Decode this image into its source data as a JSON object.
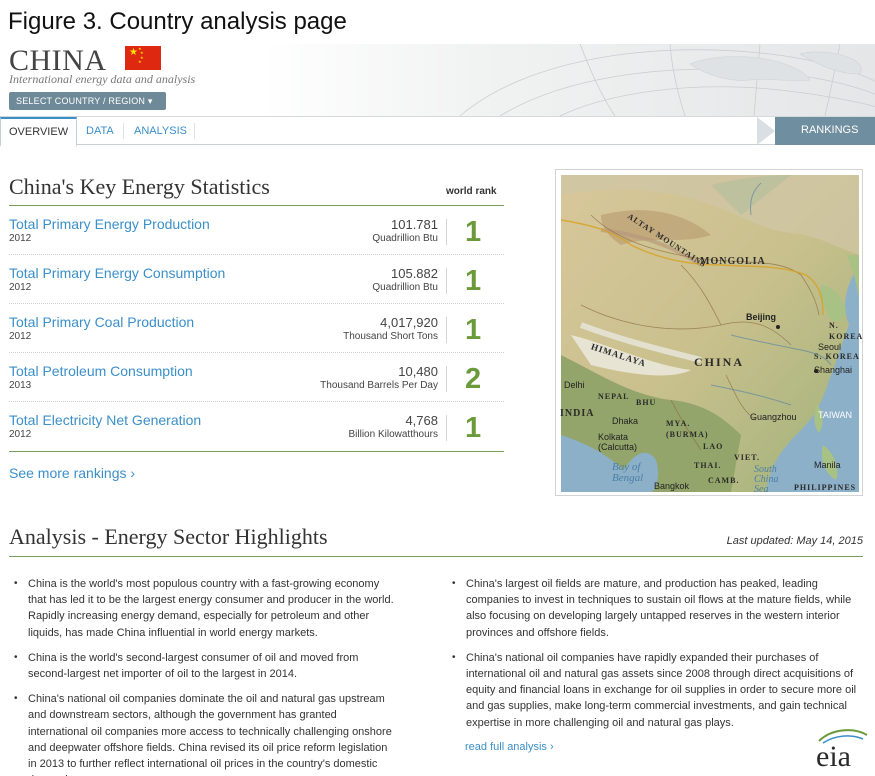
{
  "figure_caption": "Figure 3. Country analysis page",
  "header": {
    "country": "CHINA",
    "subtitle": "International energy data and analysis",
    "select_button": "SELECT COUNTRY / REGION ▾"
  },
  "tabs": [
    {
      "label": "OVERVIEW",
      "active": true
    },
    {
      "label": "DATA",
      "active": false
    },
    {
      "label": "ANALYSIS",
      "active": false
    }
  ],
  "rankings_label": "RANKINGS",
  "stats": {
    "title": "China's Key Energy Statistics",
    "rank_header": "world rank",
    "rows": [
      {
        "label": "Total Primary Energy Production",
        "year": "2012",
        "value": "101.781",
        "unit": "Quadrillion Btu",
        "rank": "1"
      },
      {
        "label": "Total Primary Energy Consumption",
        "year": "2012",
        "value": "105.882",
        "unit": "Quadrillion Btu",
        "rank": "1"
      },
      {
        "label": "Total Primary Coal Production",
        "year": "2012",
        "value": "4,017,920",
        "unit": "Thousand Short Tons",
        "rank": "1"
      },
      {
        "label": "Total Petroleum Consumption",
        "year": "2013",
        "value": "10,480",
        "unit": "Thousand Barrels Per Day",
        "rank": "2"
      },
      {
        "label": "Total Electricity Net Generation",
        "year": "2012",
        "value": "4,768",
        "unit": "Billion Kilowatthours",
        "rank": "1"
      }
    ],
    "see_more": "See more rankings ›"
  },
  "map_labels": {
    "mongolia": "MONGOLIA",
    "altay": "ALTAY MOUNTAINS",
    "china": "CHINA",
    "himalaya": "HIMALAYA",
    "beijing": "Beijing",
    "shanghai": "Shanghai",
    "seoul": "Seoul",
    "s_korea": "S. KOREA",
    "n_korea": "N. KOREA",
    "delhi": "Delhi",
    "nepal": "NEPAL",
    "bhu": "BHU",
    "india": "INDIA",
    "dhaka": "Dhaka",
    "kolkata": "Kolkata\n(Calcutta)",
    "mya": "MYA.\n(BURMA)",
    "lao": "LAO",
    "thai": "THAI.",
    "camb": "CAMB.",
    "viet": "VIET.",
    "guangzhou": "Guangzhou",
    "taiwan": "TAIWAN",
    "manila": "Manila",
    "philippines": "PHILIPPINES",
    "bangkok": "Bangkok",
    "bay_of_bengal": "Bay of\nBengal",
    "south_china_sea": "South\nChina\nSea"
  },
  "analysis": {
    "title": "Analysis - Energy Sector Highlights",
    "updated_label": "Last updated:",
    "updated_date": "May 14, 2015",
    "left_bullets": [
      "China is the world's most populous country with a fast-growing economy that has led it to be the largest energy consumer and producer in the world. Rapidly increasing energy demand, especially for petroleum and other liquids, has made China influential in world energy markets.",
      "China is the world's second-largest consumer of oil and moved from second-largest net importer of oil to the largest in 2014.",
      "China's national oil companies dominate the oil and natural gas upstream and downstream sectors, although the government has granted international oil companies more access to technically challenging onshore and deepwater offshore fields. China revised its oil price reform legislation in 2013 to further reflect international oil prices in the country's domestic demand."
    ],
    "right_bullets": [
      "China's largest oil fields are mature, and production has peaked, leading companies to invest in techniques to sustain oil flows at the mature fields, while also focusing on developing largely untapped reserves in the western interior provinces and offshore fields.",
      "China's national oil companies have rapidly expanded their purchases of international oil and natural gas assets since 2008 through direct acquisitions of equity and financial loans in exchange for oil supplies in order to secure more oil and gas supplies, make long-term commercial investments, and gain technical expertise in more challenging oil and natural gas plays."
    ],
    "read_more": "read full analysis ›"
  },
  "logo_text": "eia"
}
